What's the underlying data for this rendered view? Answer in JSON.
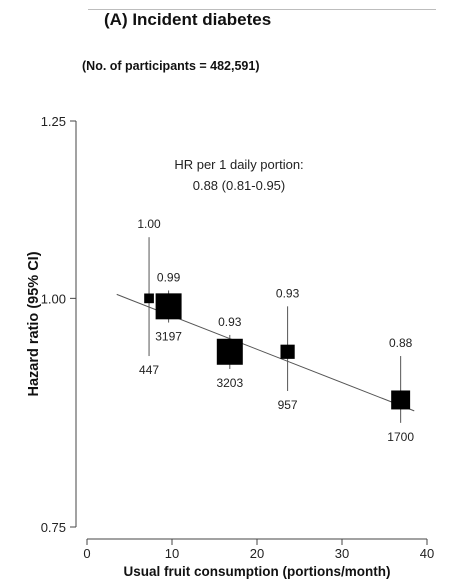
{
  "header": {
    "panel_title": "(A)  Incident diabetes",
    "participants": "(No. of participants = 482,591)"
  },
  "chart_data": {
    "type": "scatter",
    "xlabel": "Usual fruit consumption (portions/month)",
    "ylabel": "Hazard ratio (95% CI)",
    "xlim": [
      0,
      40
    ],
    "ylim": [
      0.75,
      1.25
    ],
    "y_scale": "log",
    "x_ticks": [
      0,
      10,
      20,
      30,
      40
    ],
    "y_ticks": [
      0.75,
      1.0,
      1.25
    ],
    "y_tick_labels": [
      "0.75",
      "1.00",
      "1.25"
    ],
    "annotation": {
      "line1": "HR per 1 daily portion:",
      "line2": "0.88 (0.81-0.95)"
    },
    "trend_line": {
      "x": [
        3.5,
        38.5
      ],
      "y": [
        1.005,
        0.868
      ]
    },
    "points": [
      {
        "x": 7.3,
        "hr": 1.0,
        "lo": 0.93,
        "hi": 1.08,
        "label": "1.00",
        "n": "447",
        "weight": 447
      },
      {
        "x": 9.6,
        "hr": 0.99,
        "lo": 0.97,
        "hi": 1.01,
        "label": "0.99",
        "n": "3197",
        "weight": 3197
      },
      {
        "x": 16.8,
        "hr": 0.935,
        "lo": 0.915,
        "hi": 0.955,
        "label": "0.93",
        "n": "3203",
        "weight": 3203
      },
      {
        "x": 23.6,
        "hr": 0.935,
        "lo": 0.89,
        "hi": 0.99,
        "label": "0.93",
        "n": "957",
        "weight": 957
      },
      {
        "x": 36.9,
        "hr": 0.88,
        "lo": 0.855,
        "hi": 0.93,
        "label": "0.88",
        "n": "1700",
        "weight": 1700
      }
    ]
  }
}
